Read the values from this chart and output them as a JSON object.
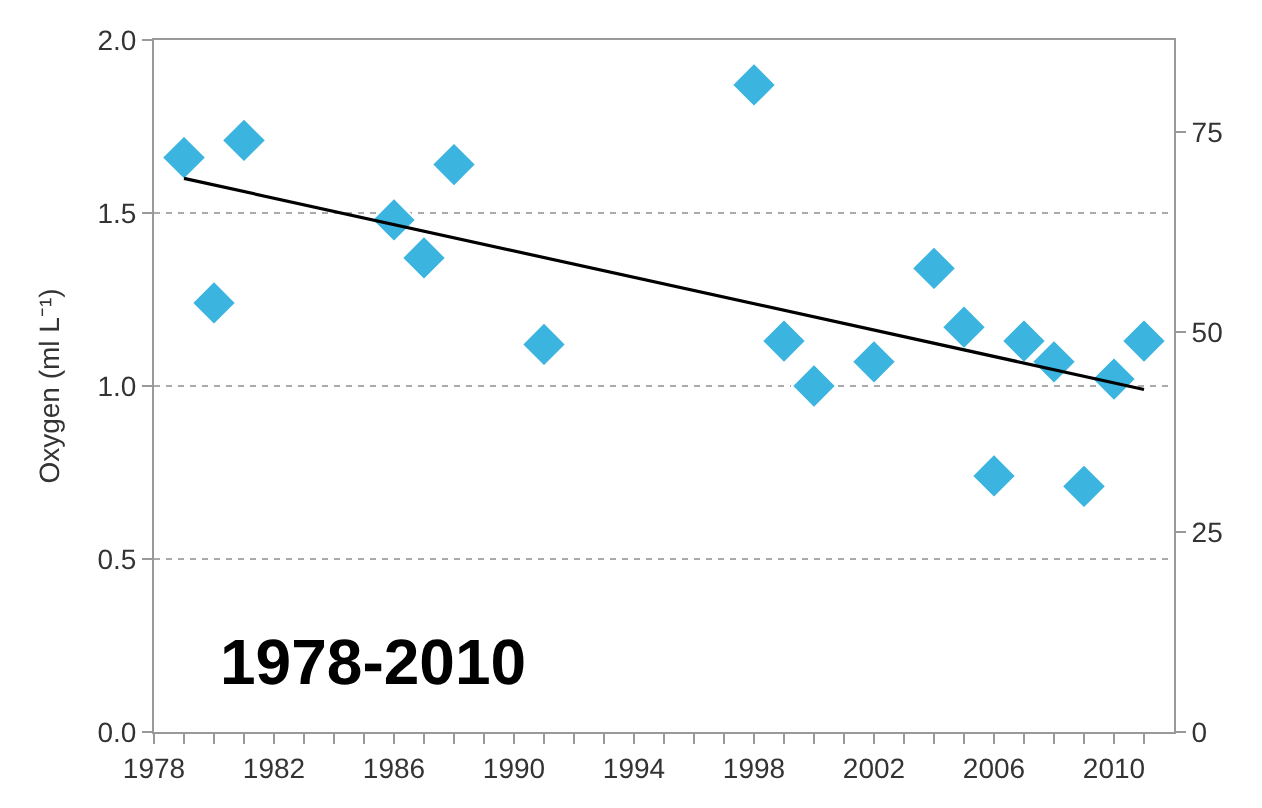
{
  "chart_data": {
    "type": "scatter",
    "ylabel": "Oxygen (ml L⁻¹)",
    "annotations": [
      "1978-2010"
    ],
    "x": [
      1979,
      1980,
      1981,
      1986,
      1987,
      1988,
      1991,
      1998,
      1999,
      2000,
      2002,
      2004,
      2005,
      2006,
      2007,
      2008,
      2009,
      2010,
      2011
    ],
    "series": [
      {
        "color": "#3bb5e0",
        "marker": "diamond",
        "values": [
          1.66,
          1.24,
          1.71,
          1.48,
          1.37,
          1.64,
          1.12,
          1.87,
          1.13,
          1.0,
          1.07,
          1.34,
          1.17,
          0.74,
          1.13,
          1.07,
          0.71,
          1.02,
          1.13
        ]
      },
      {
        "type": "line",
        "color": "#000000",
        "x": [
          1979,
          2011
        ],
        "values": [
          1.6,
          0.99
        ],
        "line_style": "solid",
        "marker": "none"
      }
    ],
    "xlim": [
      1978,
      2012
    ],
    "xticks": [
      1978,
      {
        "value": 1979,
        "label": null
      },
      {
        "value": 1980,
        "label": null
      },
      {
        "value": 1981,
        "label": null
      },
      1982,
      {
        "value": 1983,
        "label": null
      },
      {
        "value": 1984,
        "label": null
      },
      {
        "value": 1985,
        "label": null
      },
      1986,
      {
        "value": 1987,
        "label": null
      },
      {
        "value": 1988,
        "label": null
      },
      {
        "value": 1989,
        "label": null
      },
      1990,
      {
        "value": 1991,
        "label": null
      },
      {
        "value": 1992,
        "label": null
      },
      {
        "value": 1993,
        "label": null
      },
      1994,
      {
        "value": 1995,
        "label": null
      },
      {
        "value": 1996,
        "label": null
      },
      {
        "value": 1997,
        "label": null
      },
      1998,
      {
        "value": 1999,
        "label": null
      },
      {
        "value": 2000,
        "label": null
      },
      {
        "value": 2001,
        "label": null
      },
      2002,
      {
        "value": 2003,
        "label": null
      },
      {
        "value": 2004,
        "label": null
      },
      {
        "value": 2005,
        "label": null
      },
      2006,
      {
        "value": 2007,
        "label": null
      },
      {
        "value": 2008,
        "label": null
      },
      {
        "value": 2009,
        "label": null
      },
      2010,
      {
        "value": 2011,
        "label": null
      }
    ],
    "ylim": [
      0,
      2
    ],
    "yticks": [
      {
        "value": 0,
        "label": "0.0"
      },
      {
        "value": 0.5,
        "label": "0.5"
      },
      {
        "value": 1,
        "label": "1.0"
      },
      {
        "value": 1.5,
        "label": "1.5"
      },
      {
        "value": 2,
        "label": "2.0"
      }
    ],
    "y2lim": [
      0,
      86.5
    ],
    "y2ticks": [
      0,
      25,
      50,
      75
    ],
    "grid": "y"
  }
}
